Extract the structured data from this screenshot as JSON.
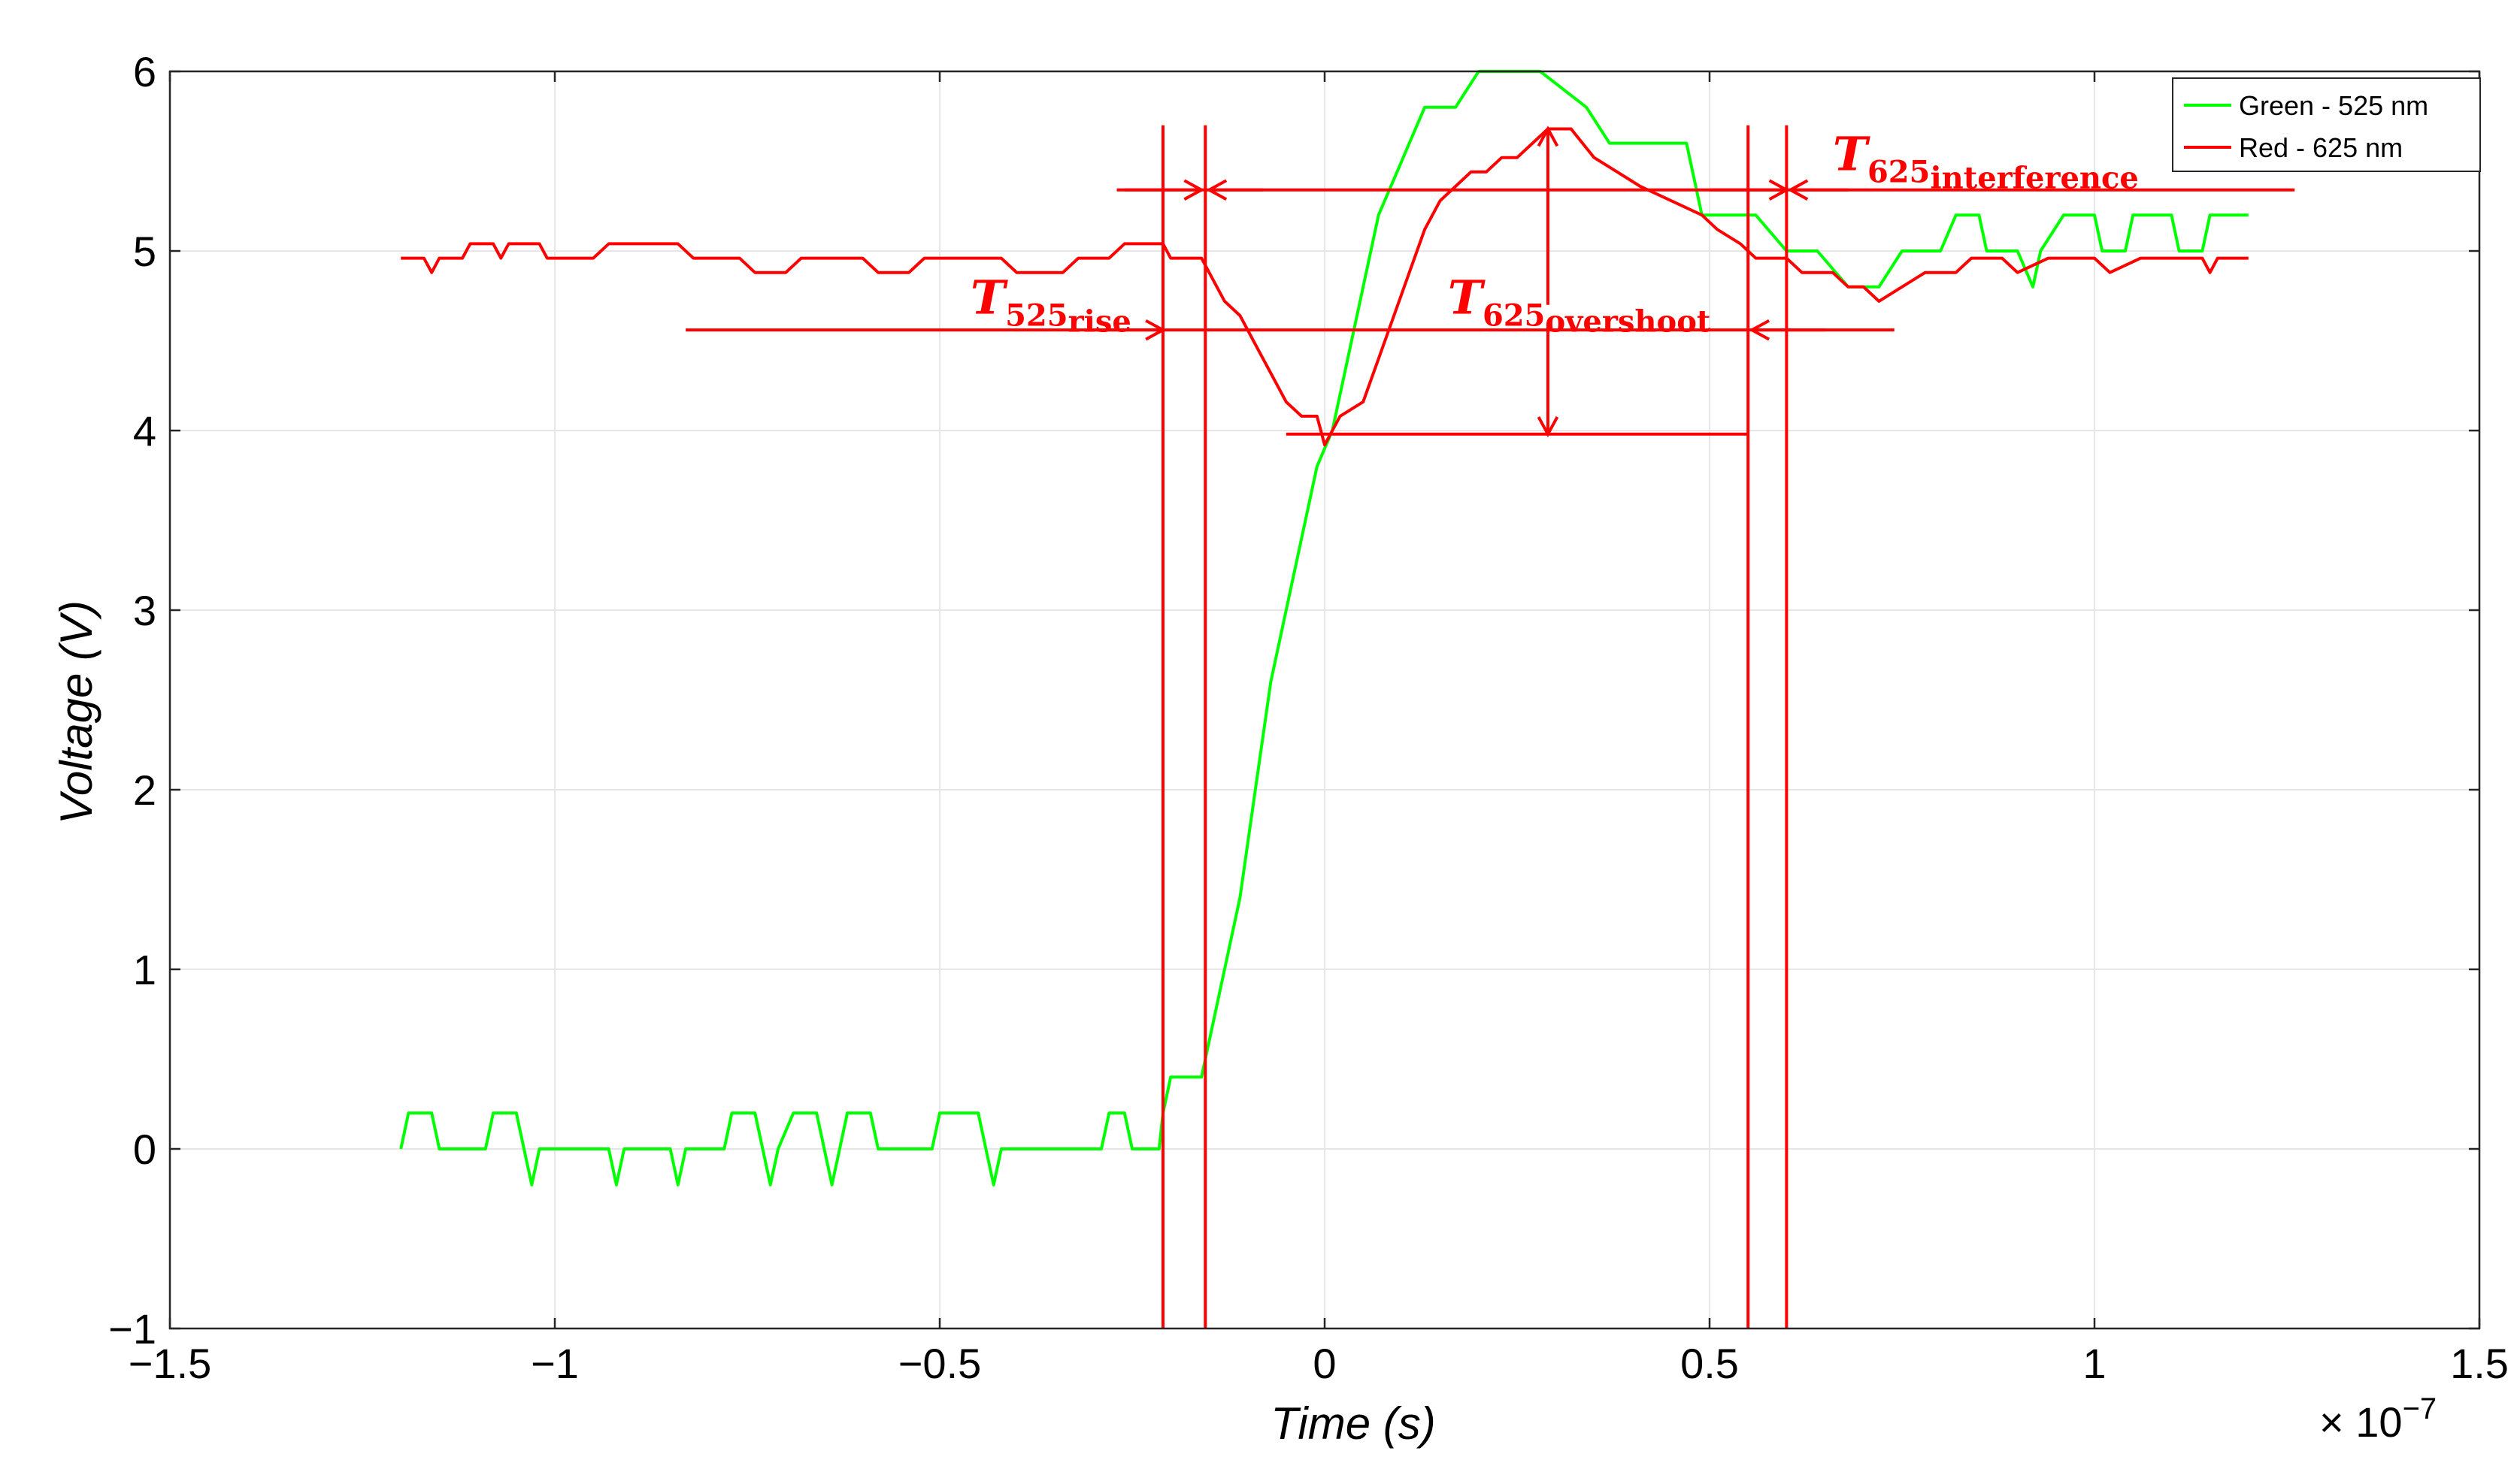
{
  "chart_data": {
    "type": "line",
    "title": "",
    "xlabel": "Time (s)",
    "ylabel": "Voltage (V)",
    "x_exponent_label": "× 10",
    "x_exponent_power": "−7",
    "xlim": [
      -1.5,
      1.5
    ],
    "ylim": [
      -1,
      6
    ],
    "grid": true,
    "legend_position": "top-right",
    "x_ticks": [
      {
        "value": -1.5,
        "label": "−1.5"
      },
      {
        "value": -1.0,
        "label": "−1"
      },
      {
        "value": -0.5,
        "label": "−0.5"
      },
      {
        "value": 0.0,
        "label": "0"
      },
      {
        "value": 0.5,
        "label": "0.5"
      },
      {
        "value": 1.0,
        "label": "1"
      },
      {
        "value": 1.5,
        "label": "1.5"
      }
    ],
    "y_ticks": [
      {
        "value": -1,
        "label": "−1"
      },
      {
        "value": 0,
        "label": "0"
      },
      {
        "value": 1,
        "label": "1"
      },
      {
        "value": 2,
        "label": "2"
      },
      {
        "value": 3,
        "label": "3"
      },
      {
        "value": 4,
        "label": "4"
      },
      {
        "value": 5,
        "label": "5"
      },
      {
        "value": 6,
        "label": "6"
      }
    ],
    "series": [
      {
        "name": "Green - 525 nm",
        "color": "#00ff00",
        "points": [
          [
            -1.2,
            0
          ],
          [
            -1.19,
            0.2
          ],
          [
            -1.16,
            0.2
          ],
          [
            -1.15,
            0
          ],
          [
            -1.09,
            0
          ],
          [
            -1.08,
            0.2
          ],
          [
            -1.05,
            0.2
          ],
          [
            -1.04,
            0
          ],
          [
            -1.03,
            -0.2
          ],
          [
            -1.02,
            0
          ],
          [
            -0.93,
            0
          ],
          [
            -0.92,
            -0.2
          ],
          [
            -0.91,
            0
          ],
          [
            -0.85,
            0
          ],
          [
            -0.84,
            -0.2
          ],
          [
            -0.83,
            0
          ],
          [
            -0.78,
            0
          ],
          [
            -0.77,
            0.2
          ],
          [
            -0.74,
            0.2
          ],
          [
            -0.73,
            0
          ],
          [
            -0.72,
            -0.2
          ],
          [
            -0.71,
            0
          ],
          [
            -0.69,
            0.2
          ],
          [
            -0.66,
            0.2
          ],
          [
            -0.65,
            0
          ],
          [
            -0.64,
            -0.2
          ],
          [
            -0.63,
            0
          ],
          [
            -0.62,
            0.2
          ],
          [
            -0.59,
            0.2
          ],
          [
            -0.58,
            0
          ],
          [
            -0.51,
            0
          ],
          [
            -0.5,
            0.2
          ],
          [
            -0.45,
            0.2
          ],
          [
            -0.44,
            0
          ],
          [
            -0.43,
            -0.2
          ],
          [
            -0.42,
            0
          ],
          [
            -0.29,
            0
          ],
          [
            -0.28,
            0.2
          ],
          [
            -0.26,
            0.2
          ],
          [
            -0.25,
            0
          ],
          [
            -0.215,
            0
          ],
          [
            -0.21,
            0.2
          ],
          [
            -0.2,
            0.4
          ],
          [
            -0.16,
            0.4
          ],
          [
            -0.15,
            0.6
          ],
          [
            -0.13,
            1.0
          ],
          [
            -0.11,
            1.4
          ],
          [
            -0.09,
            2.0
          ],
          [
            -0.07,
            2.6
          ],
          [
            -0.05,
            3.0
          ],
          [
            -0.03,
            3.4
          ],
          [
            -0.01,
            3.8
          ],
          [
            0.01,
            4.0
          ],
          [
            0.03,
            4.4
          ],
          [
            0.05,
            4.8
          ],
          [
            0.07,
            5.2
          ],
          [
            0.09,
            5.4
          ],
          [
            0.11,
            5.6
          ],
          [
            0.13,
            5.8
          ],
          [
            0.17,
            5.8
          ],
          [
            0.2,
            6.0
          ],
          [
            0.24,
            6.0
          ],
          [
            0.28,
            6.0
          ],
          [
            0.34,
            5.8
          ],
          [
            0.37,
            5.6
          ],
          [
            0.47,
            5.6
          ],
          [
            0.49,
            5.2
          ],
          [
            0.56,
            5.2
          ],
          [
            0.6,
            5.0
          ],
          [
            0.64,
            5.0
          ],
          [
            0.68,
            4.8
          ],
          [
            0.72,
            4.8
          ],
          [
            0.75,
            5.0
          ],
          [
            0.8,
            5.0
          ],
          [
            0.82,
            5.2
          ],
          [
            0.85,
            5.2
          ],
          [
            0.86,
            5.0
          ],
          [
            0.9,
            5.0
          ],
          [
            0.92,
            4.8
          ],
          [
            0.93,
            5.0
          ],
          [
            0.96,
            5.2
          ],
          [
            1.0,
            5.2
          ],
          [
            1.01,
            5.0
          ],
          [
            1.04,
            5.0
          ],
          [
            1.05,
            5.2
          ],
          [
            1.1,
            5.2
          ],
          [
            1.11,
            5.0
          ],
          [
            1.14,
            5.0
          ],
          [
            1.15,
            5.2
          ],
          [
            1.2,
            5.2
          ]
        ]
      },
      {
        "name": "Red - 625 nm",
        "color": "#ff0000",
        "points": [
          [
            -1.2,
            4.96
          ],
          [
            -1.17,
            4.96
          ],
          [
            -1.16,
            4.88
          ],
          [
            -1.15,
            4.96
          ],
          [
            -1.12,
            4.96
          ],
          [
            -1.11,
            5.04
          ],
          [
            -1.08,
            5.04
          ],
          [
            -1.07,
            4.96
          ],
          [
            -1.06,
            5.04
          ],
          [
            -1.02,
            5.04
          ],
          [
            -1.01,
            4.96
          ],
          [
            -0.95,
            4.96
          ],
          [
            -0.93,
            5.04
          ],
          [
            -0.84,
            5.04
          ],
          [
            -0.82,
            4.96
          ],
          [
            -0.76,
            4.96
          ],
          [
            -0.74,
            4.88
          ],
          [
            -0.7,
            4.88
          ],
          [
            -0.68,
            4.96
          ],
          [
            -0.6,
            4.96
          ],
          [
            -0.58,
            4.88
          ],
          [
            -0.54,
            4.88
          ],
          [
            -0.52,
            4.96
          ],
          [
            -0.42,
            4.96
          ],
          [
            -0.4,
            4.88
          ],
          [
            -0.34,
            4.88
          ],
          [
            -0.32,
            4.96
          ],
          [
            -0.28,
            4.96
          ],
          [
            -0.26,
            5.04
          ],
          [
            -0.21,
            5.04
          ],
          [
            -0.2,
            4.96
          ],
          [
            -0.16,
            4.96
          ],
          [
            -0.15,
            4.88
          ],
          [
            -0.13,
            4.72
          ],
          [
            -0.11,
            4.64
          ],
          [
            -0.09,
            4.48
          ],
          [
            -0.07,
            4.32
          ],
          [
            -0.05,
            4.16
          ],
          [
            -0.03,
            4.08
          ],
          [
            -0.01,
            4.08
          ],
          [
            0.0,
            3.92
          ],
          [
            0.02,
            4.08
          ],
          [
            0.05,
            4.16
          ],
          [
            0.07,
            4.4
          ],
          [
            0.09,
            4.64
          ],
          [
            0.11,
            4.88
          ],
          [
            0.13,
            5.12
          ],
          [
            0.15,
            5.28
          ],
          [
            0.17,
            5.36
          ],
          [
            0.19,
            5.44
          ],
          [
            0.21,
            5.44
          ],
          [
            0.23,
            5.52
          ],
          [
            0.25,
            5.52
          ],
          [
            0.27,
            5.6
          ],
          [
            0.29,
            5.68
          ],
          [
            0.32,
            5.68
          ],
          [
            0.35,
            5.52
          ],
          [
            0.38,
            5.44
          ],
          [
            0.41,
            5.36
          ],
          [
            0.45,
            5.28
          ],
          [
            0.49,
            5.2
          ],
          [
            0.51,
            5.12
          ],
          [
            0.54,
            5.04
          ],
          [
            0.56,
            4.96
          ],
          [
            0.6,
            4.96
          ],
          [
            0.62,
            4.88
          ],
          [
            0.66,
            4.88
          ],
          [
            0.68,
            4.8
          ],
          [
            0.7,
            4.8
          ],
          [
            0.72,
            4.72
          ],
          [
            0.75,
            4.8
          ],
          [
            0.78,
            4.88
          ],
          [
            0.82,
            4.88
          ],
          [
            0.84,
            4.96
          ],
          [
            0.88,
            4.96
          ],
          [
            0.9,
            4.88
          ],
          [
            0.94,
            4.96
          ],
          [
            1.0,
            4.96
          ],
          [
            1.02,
            4.88
          ],
          [
            1.06,
            4.96
          ],
          [
            1.14,
            4.96
          ],
          [
            1.15,
            4.88
          ],
          [
            1.16,
            4.96
          ],
          [
            1.2,
            4.96
          ]
        ]
      }
    ],
    "annotations": {
      "color": "#ff0000",
      "vertical_lines": [
        {
          "x": -0.21,
          "y_from": -1.0,
          "y_to": 5.7
        },
        {
          "x": -0.155,
          "y_from": -1.0,
          "y_to": 5.7
        },
        {
          "x": 0.55,
          "y_from": -1.0,
          "y_to": 5.7
        },
        {
          "x": 0.6,
          "y_from": -1.0,
          "y_to": 5.7
        }
      ],
      "horizontal_lines": [
        {
          "x1": -0.27,
          "x2": 1.26,
          "y": 5.34
        },
        {
          "x1": -0.83,
          "x2": 0.74,
          "y": 4.56
        },
        {
          "x1": -0.05,
          "x2": 0.55,
          "y": 3.98
        }
      ],
      "arrows": [
        {
          "from": [
            -0.26,
            5.34
          ],
          "to": [
            -0.16,
            5.34
          ]
        },
        {
          "from": [
            -0.08,
            5.34
          ],
          "to": [
            -0.15,
            5.34
          ]
        },
        {
          "from": [
            0.5,
            5.34
          ],
          "to": [
            0.6,
            5.34
          ]
        },
        {
          "from": [
            0.68,
            5.34
          ],
          "to": [
            0.605,
            5.34
          ]
        },
        {
          "from": [
            -0.3,
            4.56
          ],
          "to": [
            -0.21,
            4.56
          ]
        },
        {
          "from": [
            0.65,
            4.56
          ],
          "to": [
            0.555,
            4.56
          ]
        },
        {
          "from": [
            0.29,
            4.7
          ],
          "to": [
            0.29,
            5.68
          ]
        },
        {
          "from": [
            0.29,
            4.6
          ],
          "to": [
            0.29,
            3.98
          ]
        }
      ],
      "labels": [
        {
          "main": "T",
          "sub": "525",
          "subsub": "rise",
          "x": -0.46,
          "y": 4.65
        },
        {
          "main": "T",
          "sub": "625",
          "subsub": "overshoot",
          "x": 0.16,
          "y": 4.65
        },
        {
          "main": "T",
          "sub": "625",
          "subsub": "interference",
          "x": 0.66,
          "y": 5.45
        }
      ]
    }
  }
}
